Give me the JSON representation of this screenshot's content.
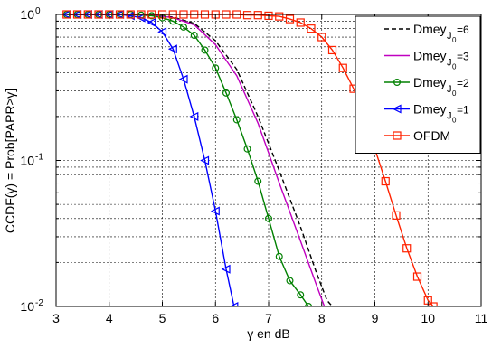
{
  "chart_data": {
    "type": "line",
    "xlabel": "γ en dB",
    "ylabel": "CCDF(γ) = Prob[PAPR≥γ]",
    "xlim": [
      3,
      11
    ],
    "ylim": [
      0.01,
      1
    ],
    "yscale": "log",
    "grid": true,
    "legend_position": "top-right",
    "x_ticks": [
      {
        "value": 3,
        "label": "3"
      },
      {
        "value": 4,
        "label": "4"
      },
      {
        "value": 5,
        "label": "5"
      },
      {
        "value": 6,
        "label": "6"
      },
      {
        "value": 7,
        "label": "7"
      },
      {
        "value": 8,
        "label": "8"
      },
      {
        "value": 9,
        "label": "9"
      },
      {
        "value": 10,
        "label": "10"
      },
      {
        "value": 11,
        "label": "11"
      }
    ],
    "y_ticks": [
      {
        "value": 1,
        "base": "10",
        "exp": "0"
      },
      {
        "value": 0.1,
        "base": "10",
        "exp": "-1"
      },
      {
        "value": 0.01,
        "base": "10",
        "exp": "-2"
      }
    ],
    "series": [
      {
        "legend_base": "Dmey",
        "legend_sub": "J",
        "legend_subsub": "0",
        "legend_tail": "=6",
        "color": "#000000",
        "dash": "5,3",
        "marker": "none",
        "x": [
          3.2,
          3.6,
          4.0,
          4.4,
          4.8,
          5.2,
          5.6,
          6.0,
          6.4,
          6.8,
          7.2,
          7.6,
          7.9,
          8.1,
          8.2
        ],
        "y": [
          1.0,
          1.0,
          1.0,
          1.0,
          0.99,
          0.96,
          0.87,
          0.66,
          0.42,
          0.2,
          0.085,
          0.035,
          0.017,
          0.011,
          0.01
        ]
      },
      {
        "legend_base": "Dmey",
        "legend_sub": "J",
        "legend_subsub": "0",
        "legend_tail": "=3",
        "color": "#c000c0",
        "dash": "",
        "marker": "none",
        "x": [
          3.2,
          3.6,
          4.0,
          4.4,
          4.8,
          5.2,
          5.6,
          6.0,
          6.4,
          6.8,
          7.2,
          7.6,
          7.9,
          8.05
        ],
        "y": [
          1.0,
          1.0,
          1.0,
          1.0,
          0.99,
          0.95,
          0.85,
          0.62,
          0.38,
          0.18,
          0.07,
          0.028,
          0.014,
          0.01
        ]
      },
      {
        "legend_base": "Dmey",
        "legend_sub": "J",
        "legend_subsub": "0",
        "legend_tail": "=2",
        "color": "#008000",
        "dash": "",
        "marker": "circle",
        "x": [
          3.2,
          3.4,
          3.6,
          3.8,
          4.0,
          4.2,
          4.4,
          4.6,
          4.8,
          5.0,
          5.2,
          5.4,
          5.6,
          5.8,
          6.0,
          6.2,
          6.4,
          6.6,
          6.8,
          7.0,
          7.2,
          7.4,
          7.6,
          7.75
        ],
        "y": [
          1.0,
          1.0,
          1.0,
          1.0,
          1.0,
          1.0,
          1.0,
          0.99,
          0.98,
          0.95,
          0.9,
          0.82,
          0.72,
          0.57,
          0.43,
          0.29,
          0.19,
          0.12,
          0.072,
          0.04,
          0.022,
          0.015,
          0.012,
          0.01
        ]
      },
      {
        "legend_base": "Dmey",
        "legend_sub": "J",
        "legend_subsub": "0",
        "legend_tail": "=1",
        "color": "#0000ff",
        "dash": "",
        "marker": "triangle-left",
        "x": [
          3.2,
          3.4,
          3.6,
          3.8,
          4.0,
          4.2,
          4.4,
          4.6,
          4.8,
          5.0,
          5.2,
          5.4,
          5.6,
          5.8,
          6.0,
          6.2,
          6.35
        ],
        "y": [
          1.0,
          1.0,
          1.0,
          1.0,
          1.0,
          1.0,
          0.98,
          0.95,
          0.88,
          0.76,
          0.58,
          0.36,
          0.2,
          0.1,
          0.045,
          0.018,
          0.01
        ]
      },
      {
        "legend_base": "OFDM",
        "legend_sub": "",
        "legend_subsub": "",
        "legend_tail": "",
        "color": "#ff2200",
        "dash": "",
        "marker": "square",
        "x": [
          3.2,
          3.4,
          3.6,
          3.8,
          4.0,
          4.2,
          4.4,
          4.6,
          4.8,
          5.0,
          5.2,
          5.4,
          5.6,
          5.8,
          6.0,
          6.2,
          6.4,
          6.6,
          6.8,
          7.0,
          7.2,
          7.4,
          7.6,
          7.8,
          8.0,
          8.2,
          8.4,
          8.6,
          8.8,
          9.0,
          9.2,
          9.4,
          9.6,
          9.8,
          10.0,
          10.1
        ],
        "y": [
          1.0,
          1.0,
          1.0,
          1.0,
          1.0,
          1.0,
          1.0,
          1.0,
          1.0,
          1.0,
          1.0,
          1.0,
          1.0,
          1.0,
          1.0,
          1.0,
          1.0,
          0.99,
          0.99,
          0.98,
          0.97,
          0.93,
          0.88,
          0.8,
          0.7,
          0.57,
          0.43,
          0.31,
          0.2,
          0.12,
          0.072,
          0.042,
          0.025,
          0.016,
          0.011,
          0.01
        ]
      }
    ]
  }
}
